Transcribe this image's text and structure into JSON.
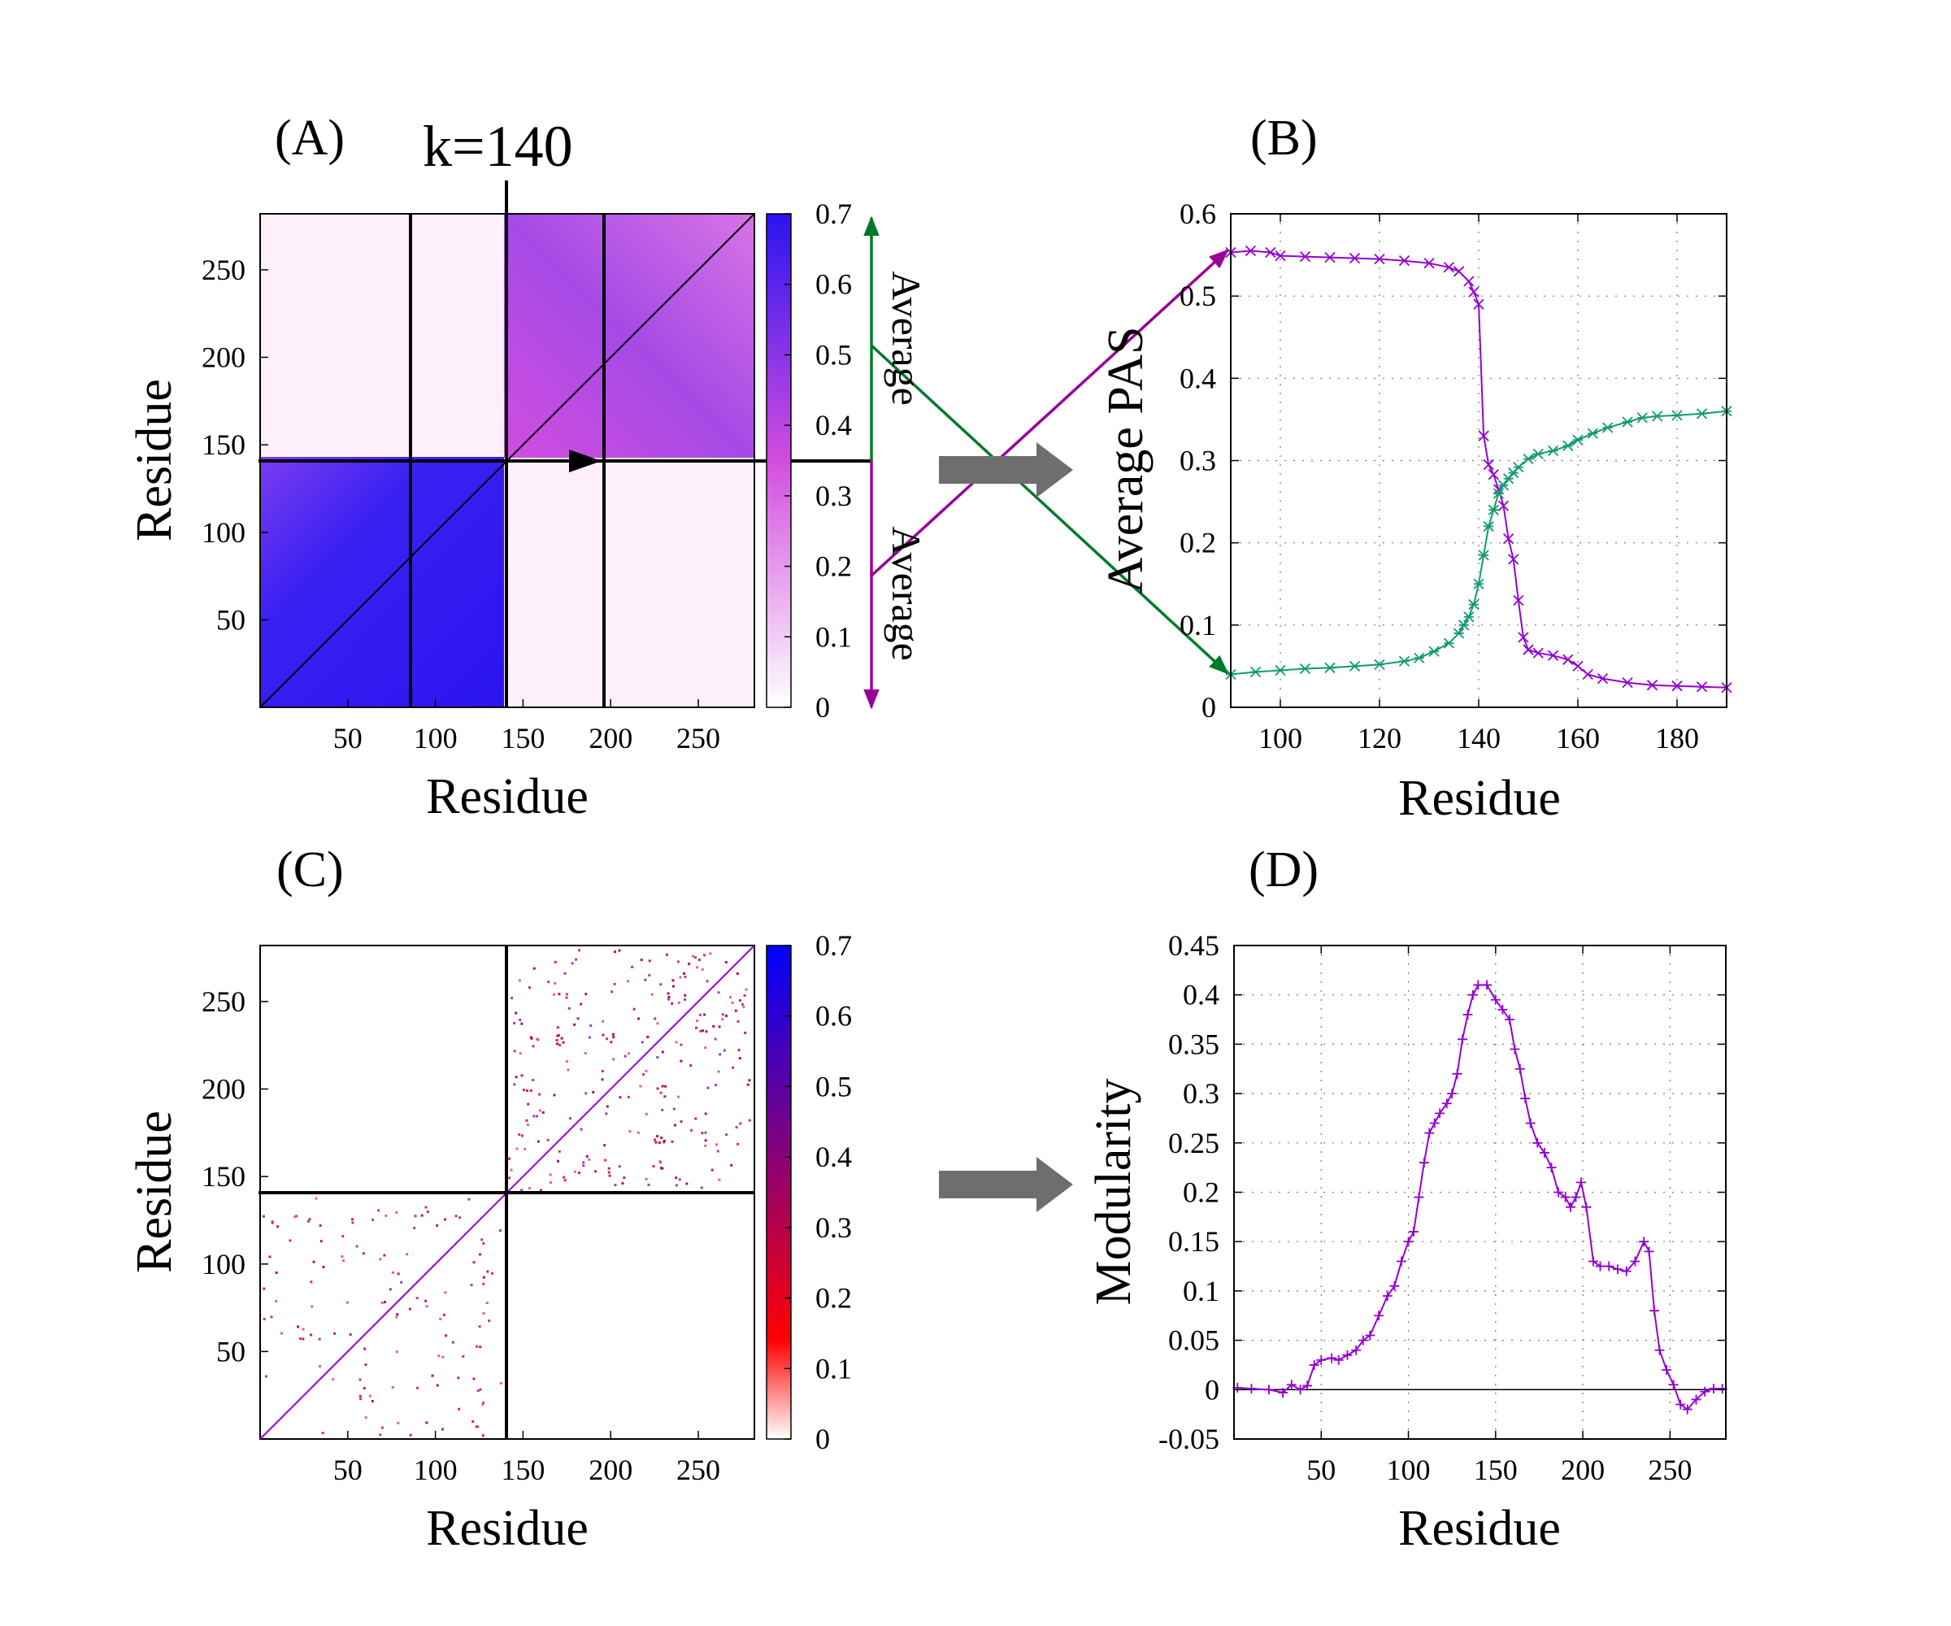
{
  "figure": {
    "panel_labels": {
      "a": "(A)",
      "b": "(B)",
      "c": "(C)",
      "d": "(D)"
    },
    "k_label": "k=140",
    "average_upper": "Average",
    "average_lower": "Average",
    "colors": {
      "magenta_arrow": "#990099",
      "green_arrow": "#007a2a",
      "gray_arrow": "#6e6e6e",
      "series_purple": "#9400d3",
      "series_green": "#139a72",
      "map_blue": "#2a14f0",
      "map_magenta": "#d24de0",
      "map_violet": "#9b47e8",
      "map_pink": "#fdf0fb"
    }
  },
  "chart_data": [
    {
      "id": "A",
      "type": "heatmap",
      "title": "",
      "xlabel": "Residue",
      "ylabel": "Residue",
      "xlim": [
        0,
        282
      ],
      "ylim": [
        0,
        282
      ],
      "xticks": [
        50,
        100,
        150,
        200,
        250
      ],
      "yticks": [
        50,
        100,
        150,
        200,
        250
      ],
      "split_residue": 140,
      "guide_lines_x": [
        86,
        140,
        196
      ],
      "colorbar": {
        "min": 0,
        "max": 0.7,
        "ticks": [
          0,
          0.1,
          0.2,
          0.3,
          0.4,
          0.5,
          0.6,
          0.7
        ],
        "colors": [
          "#ffffff",
          "#d24de0",
          "#2a14f0"
        ]
      },
      "blocks": [
        {
          "region": "lower-left",
          "x": [
            0,
            140
          ],
          "y": [
            0,
            140
          ],
          "value": 0.66
        },
        {
          "region": "upper-right",
          "x": [
            140,
            282
          ],
          "y": [
            140,
            282
          ],
          "value": 0.36
        },
        {
          "region": "upper-left",
          "x": [
            0,
            140
          ],
          "y": [
            140,
            282
          ],
          "value": 0.02
        },
        {
          "region": "lower-right",
          "x": [
            140,
            282
          ],
          "y": [
            0,
            140
          ],
          "value": 0.02
        }
      ]
    },
    {
      "id": "B",
      "type": "line",
      "xlabel": "Residue",
      "ylabel": "Average PAS",
      "xlim": [
        90,
        190
      ],
      "ylim": [
        0,
        0.6
      ],
      "xticks": [
        100,
        120,
        140,
        160,
        180
      ],
      "yticks": [
        0,
        0.1,
        0.2,
        0.3,
        0.4,
        0.5,
        0.6
      ],
      "ytick_labels": [
        "0",
        "0.1",
        "0.2",
        "0.3",
        "0.4",
        "0.5",
        "0.6"
      ],
      "grid": true,
      "series": [
        {
          "name": "upper average",
          "color": "#9400d3",
          "marker": "x",
          "points": [
            [
              90,
              0.553
            ],
            [
              94,
              0.555
            ],
            [
              98,
              0.553
            ],
            [
              100,
              0.549
            ],
            [
              105,
              0.548
            ],
            [
              110,
              0.547
            ],
            [
              115,
              0.546
            ],
            [
              120,
              0.545
            ],
            [
              125,
              0.543
            ],
            [
              130,
              0.54
            ],
            [
              134,
              0.535
            ],
            [
              136,
              0.53
            ],
            [
              138,
              0.518
            ],
            [
              139,
              0.505
            ],
            [
              140,
              0.49
            ],
            [
              141,
              0.33
            ],
            [
              142,
              0.295
            ],
            [
              143,
              0.283
            ],
            [
              144,
              0.265
            ],
            [
              145,
              0.245
            ],
            [
              146,
              0.205
            ],
            [
              147,
              0.18
            ],
            [
              148,
              0.13
            ],
            [
              149,
              0.085
            ],
            [
              150,
              0.07
            ],
            [
              152,
              0.066
            ],
            [
              155,
              0.063
            ],
            [
              158,
              0.058
            ],
            [
              160,
              0.05
            ],
            [
              162,
              0.04
            ],
            [
              165,
              0.035
            ],
            [
              170,
              0.03
            ],
            [
              175,
              0.027
            ],
            [
              180,
              0.026
            ],
            [
              185,
              0.025
            ],
            [
              190,
              0.024
            ]
          ]
        },
        {
          "name": "lower average",
          "color": "#139a72",
          "marker": "*",
          "points": [
            [
              90,
              0.04
            ],
            [
              95,
              0.043
            ],
            [
              100,
              0.045
            ],
            [
              105,
              0.047
            ],
            [
              110,
              0.048
            ],
            [
              115,
              0.05
            ],
            [
              120,
              0.052
            ],
            [
              125,
              0.056
            ],
            [
              128,
              0.06
            ],
            [
              131,
              0.068
            ],
            [
              134,
              0.078
            ],
            [
              136,
              0.09
            ],
            [
              137,
              0.1
            ],
            [
              138,
              0.11
            ],
            [
              139,
              0.125
            ],
            [
              140,
              0.15
            ],
            [
              141,
              0.185
            ],
            [
              142,
              0.22
            ],
            [
              143,
              0.24
            ],
            [
              144,
              0.26
            ],
            [
              145,
              0.27
            ],
            [
              146,
              0.278
            ],
            [
              147,
              0.285
            ],
            [
              148,
              0.292
            ],
            [
              150,
              0.302
            ],
            [
              152,
              0.308
            ],
            [
              155,
              0.312
            ],
            [
              158,
              0.318
            ],
            [
              160,
              0.325
            ],
            [
              163,
              0.333
            ],
            [
              166,
              0.34
            ],
            [
              170,
              0.347
            ],
            [
              173,
              0.352
            ],
            [
              176,
              0.354
            ],
            [
              180,
              0.355
            ],
            [
              185,
              0.357
            ],
            [
              190,
              0.36
            ]
          ]
        }
      ]
    },
    {
      "id": "C",
      "type": "heatmap",
      "title": "",
      "xlabel": "Residue",
      "ylabel": "Residue",
      "xlim": [
        0,
        282
      ],
      "ylim": [
        0,
        282
      ],
      "xticks": [
        50,
        100,
        150,
        200,
        250
      ],
      "yticks": [
        50,
        100,
        150,
        200,
        250
      ],
      "split_residue": 140,
      "colorbar": {
        "min": 0,
        "max": 0.7,
        "ticks": [
          0,
          0.1,
          0.2,
          0.3,
          0.4,
          0.5,
          0.6,
          0.7
        ],
        "colors": [
          "#ffffff",
          "#ff0000",
          "#800080",
          "#0000ff"
        ]
      },
      "contact_regions": [
        {
          "region": "lower-left",
          "x": [
            0,
            140
          ],
          "y": [
            0,
            140
          ],
          "density": "sparse"
        },
        {
          "region": "upper-right",
          "x": [
            140,
            282
          ],
          "y": [
            140,
            282
          ],
          "density": "sparse"
        }
      ]
    },
    {
      "id": "D",
      "type": "line",
      "xlabel": "Residue",
      "ylabel": "Modularity",
      "xlim": [
        0,
        282
      ],
      "ylim": [
        -0.05,
        0.45
      ],
      "xticks": [
        50,
        100,
        150,
        200,
        250
      ],
      "yticks": [
        -0.05,
        0,
        0.05,
        0.1,
        0.15,
        0.2,
        0.25,
        0.3,
        0.35,
        0.4,
        0.45
      ],
      "ytick_labels": [
        "-0.05",
        "0",
        "0.05",
        "0.1",
        "0.15",
        "0.2",
        "0.25",
        "0.3",
        "0.35",
        "0.4",
        "0.45"
      ],
      "grid": true,
      "zero_line": true,
      "series": [
        {
          "name": "modularity",
          "color": "#9400d3",
          "marker": "+",
          "points": [
            [
              2,
              0.002
            ],
            [
              10,
              0.001
            ],
            [
              20,
              0.0
            ],
            [
              28,
              -0.003
            ],
            [
              33,
              0.005
            ],
            [
              38,
              0.0
            ],
            [
              42,
              0.004
            ],
            [
              46,
              0.025
            ],
            [
              50,
              0.03
            ],
            [
              56,
              0.032
            ],
            [
              60,
              0.03
            ],
            [
              65,
              0.035
            ],
            [
              70,
              0.04
            ],
            [
              74,
              0.05
            ],
            [
              78,
              0.055
            ],
            [
              83,
              0.075
            ],
            [
              88,
              0.095
            ],
            [
              92,
              0.105
            ],
            [
              96,
              0.13
            ],
            [
              100,
              0.15
            ],
            [
              103,
              0.16
            ],
            [
              106,
              0.195
            ],
            [
              109,
              0.23
            ],
            [
              112,
              0.26
            ],
            [
              115,
              0.27
            ],
            [
              118,
              0.28
            ],
            [
              122,
              0.29
            ],
            [
              125,
              0.3
            ],
            [
              128,
              0.32
            ],
            [
              131,
              0.355
            ],
            [
              134,
              0.38
            ],
            [
              137,
              0.4
            ],
            [
              140,
              0.41
            ],
            [
              145,
              0.41
            ],
            [
              150,
              0.395
            ],
            [
              154,
              0.385
            ],
            [
              158,
              0.375
            ],
            [
              161,
              0.345
            ],
            [
              164,
              0.325
            ],
            [
              167,
              0.295
            ],
            [
              170,
              0.27
            ],
            [
              174,
              0.25
            ],
            [
              178,
              0.24
            ],
            [
              182,
              0.225
            ],
            [
              186,
              0.2
            ],
            [
              190,
              0.195
            ],
            [
              193,
              0.185
            ],
            [
              196,
              0.195
            ],
            [
              199,
              0.21
            ],
            [
              202,
              0.185
            ],
            [
              206,
              0.13
            ],
            [
              210,
              0.125
            ],
            [
              215,
              0.125
            ],
            [
              220,
              0.122
            ],
            [
              225,
              0.12
            ],
            [
              230,
              0.13
            ],
            [
              235,
              0.15
            ],
            [
              238,
              0.14
            ],
            [
              241,
              0.08
            ],
            [
              244,
              0.04
            ],
            [
              248,
              0.02
            ],
            [
              252,
              0.005
            ],
            [
              256,
              -0.015
            ],
            [
              260,
              -0.02
            ],
            [
              265,
              -0.01
            ],
            [
              270,
              -0.002
            ],
            [
              275,
              0.001
            ],
            [
              280,
              0.001
            ]
          ]
        }
      ]
    }
  ]
}
